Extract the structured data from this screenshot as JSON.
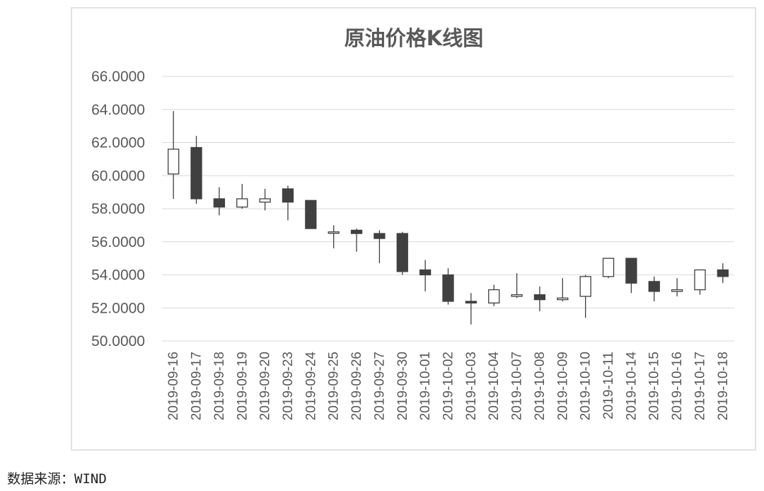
{
  "source": "数据来源：WIND",
  "colors": {
    "up_fill": "#ffffff",
    "down_fill": "#404040",
    "stroke": "#404040",
    "grid": "#d9d9d9",
    "border": "#d9d9d9",
    "text": "#595959"
  },
  "chart_data": {
    "type": "candlestick",
    "title": "原油价格K线图",
    "xlabel": "",
    "ylabel": "",
    "ylim": [
      50,
      66
    ],
    "y_ticks": [
      "50.0000",
      "52.0000",
      "54.0000",
      "56.0000",
      "58.0000",
      "60.0000",
      "62.0000",
      "64.0000",
      "66.0000"
    ],
    "grid": true,
    "legend": "none",
    "categories": [
      "2019-09-16",
      "2019-09-17",
      "2019-09-18",
      "2019-09-19",
      "2019-09-20",
      "2019-09-23",
      "2019-09-24",
      "2019-09-25",
      "2019-09-26",
      "2019-09-27",
      "2019-09-30",
      "2019-10-01",
      "2019-10-02",
      "2019-10-03",
      "2019-10-04",
      "2019-10-07",
      "2019-10-08",
      "2019-10-09",
      "2019-10-10",
      "2019-10-11",
      "2019-10-14",
      "2019-10-15",
      "2019-10-16",
      "2019-10-17",
      "2019-10-18"
    ],
    "open": [
      60.1,
      61.7,
      58.6,
      58.1,
      58.4,
      59.2,
      58.5,
      56.6,
      56.7,
      56.5,
      56.5,
      54.3,
      54.0,
      52.4,
      52.3,
      52.7,
      52.8,
      52.5,
      52.7,
      53.9,
      55.0,
      53.6,
      53.0,
      53.1,
      54.3
    ],
    "high": [
      63.9,
      62.4,
      59.3,
      59.5,
      59.2,
      59.4,
      58.5,
      57.0,
      56.8,
      56.7,
      56.6,
      54.9,
      54.4,
      52.9,
      53.4,
      54.1,
      53.3,
      53.8,
      54.0,
      55.0,
      55.0,
      53.9,
      53.8,
      54.3,
      54.7
    ],
    "low": [
      58.6,
      58.3,
      57.6,
      58.0,
      57.9,
      57.3,
      56.8,
      55.6,
      55.4,
      54.7,
      54.0,
      53.0,
      52.2,
      51.0,
      52.1,
      52.6,
      51.8,
      52.4,
      51.4,
      53.8,
      52.9,
      52.4,
      52.7,
      52.8,
      53.5
    ],
    "close": [
      61.6,
      58.6,
      58.1,
      58.6,
      58.6,
      58.4,
      56.8,
      56.6,
      56.5,
      56.2,
      54.2,
      54.0,
      52.4,
      52.3,
      53.1,
      52.8,
      52.5,
      52.6,
      53.9,
      55.0,
      53.5,
      53.0,
      53.1,
      54.3,
      53.9
    ]
  }
}
